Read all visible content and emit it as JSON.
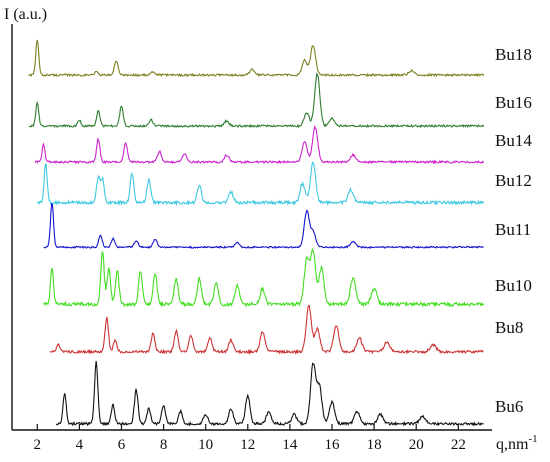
{
  "chart_data": {
    "type": "line",
    "x_axis": {
      "label": "q,nm",
      "label_superscript": "-1",
      "min": 0.8,
      "max": 23.6,
      "ticks": [
        2,
        4,
        6,
        8,
        10,
        12,
        14,
        16,
        18,
        20,
        22
      ]
    },
    "y_axis": {
      "label": "I (a.u.)"
    },
    "series": [
      {
        "name": "Bu18",
        "color": "#7f7f1f",
        "peaks": [
          [
            2.0,
            0.85
          ],
          [
            4.8,
            0.08
          ],
          [
            5.75,
            0.35
          ],
          [
            7.5,
            0.07
          ],
          [
            12.2,
            0.13
          ],
          [
            14.7,
            0.35
          ],
          [
            15.1,
            0.7
          ],
          [
            19.8,
            0.1
          ]
        ]
      },
      {
        "name": "Bu16",
        "color": "#2e7d2e",
        "peaks": [
          [
            2.0,
            0.45
          ],
          [
            4.0,
            0.12
          ],
          [
            4.9,
            0.3
          ],
          [
            6.0,
            0.38
          ],
          [
            7.4,
            0.12
          ],
          [
            11.0,
            0.1
          ],
          [
            14.8,
            0.25
          ],
          [
            15.3,
            1.0
          ],
          [
            16.0,
            0.15
          ]
        ]
      },
      {
        "name": "Bu14",
        "color": "#cc22cc",
        "peaks": [
          [
            2.3,
            0.5
          ],
          [
            4.9,
            0.65
          ],
          [
            6.2,
            0.55
          ],
          [
            7.8,
            0.3
          ],
          [
            9.0,
            0.25
          ],
          [
            11.0,
            0.2
          ],
          [
            14.7,
            0.6
          ],
          [
            15.2,
            1.0
          ],
          [
            17.0,
            0.2
          ]
        ]
      },
      {
        "name": "Bu12",
        "color": "#3cc8e0",
        "peaks": [
          [
            2.4,
            0.95
          ],
          [
            4.9,
            0.6
          ],
          [
            5.1,
            0.55
          ],
          [
            6.5,
            0.7
          ],
          [
            7.3,
            0.55
          ],
          [
            9.7,
            0.4
          ],
          [
            11.2,
            0.25
          ],
          [
            14.6,
            0.45
          ],
          [
            15.1,
            0.95
          ],
          [
            16.9,
            0.3
          ]
        ]
      },
      {
        "name": "Bu11",
        "color": "#1414cc",
        "peaks": [
          [
            2.7,
            1.0
          ],
          [
            5.0,
            0.28
          ],
          [
            5.6,
            0.2
          ],
          [
            6.7,
            0.15
          ],
          [
            7.6,
            0.18
          ],
          [
            11.5,
            0.1
          ],
          [
            14.8,
            0.8
          ],
          [
            15.1,
            0.35
          ],
          [
            17.0,
            0.12
          ]
        ]
      },
      {
        "name": "Bu10",
        "color": "#44dd22",
        "peaks": [
          [
            2.7,
            0.7
          ],
          [
            5.1,
            1.0
          ],
          [
            5.4,
            0.7
          ],
          [
            5.8,
            0.65
          ],
          [
            6.9,
            0.65
          ],
          [
            7.6,
            0.6
          ],
          [
            8.6,
            0.5
          ],
          [
            9.7,
            0.5
          ],
          [
            10.5,
            0.4
          ],
          [
            11.5,
            0.35
          ],
          [
            12.7,
            0.3
          ],
          [
            14.8,
            0.85
          ],
          [
            15.1,
            1.0
          ],
          [
            15.5,
            0.7
          ],
          [
            17.0,
            0.5
          ],
          [
            18.0,
            0.3
          ]
        ]
      },
      {
        "name": "Bu8",
        "color": "#cc3333",
        "peaks": [
          [
            3.0,
            0.15
          ],
          [
            5.3,
            0.75
          ],
          [
            5.7,
            0.25
          ],
          [
            7.5,
            0.4
          ],
          [
            8.6,
            0.45
          ],
          [
            9.3,
            0.35
          ],
          [
            10.2,
            0.3
          ],
          [
            11.2,
            0.25
          ],
          [
            12.7,
            0.45
          ],
          [
            14.9,
            1.0
          ],
          [
            15.3,
            0.5
          ],
          [
            16.2,
            0.55
          ],
          [
            17.3,
            0.3
          ],
          [
            18.6,
            0.2
          ],
          [
            20.8,
            0.15
          ]
        ]
      },
      {
        "name": "Bu6",
        "color": "#111111",
        "peaks": [
          [
            3.3,
            0.5
          ],
          [
            4.8,
            1.0
          ],
          [
            5.6,
            0.3
          ],
          [
            6.7,
            0.55
          ],
          [
            7.3,
            0.25
          ],
          [
            8.0,
            0.3
          ],
          [
            8.8,
            0.2
          ],
          [
            10.0,
            0.15
          ],
          [
            11.2,
            0.25
          ],
          [
            12.0,
            0.45
          ],
          [
            13.0,
            0.2
          ],
          [
            14.2,
            0.15
          ],
          [
            15.1,
            0.95
          ],
          [
            15.4,
            0.6
          ],
          [
            16.0,
            0.35
          ],
          [
            17.2,
            0.2
          ],
          [
            18.3,
            0.15
          ],
          [
            20.3,
            0.12
          ]
        ]
      }
    ]
  }
}
